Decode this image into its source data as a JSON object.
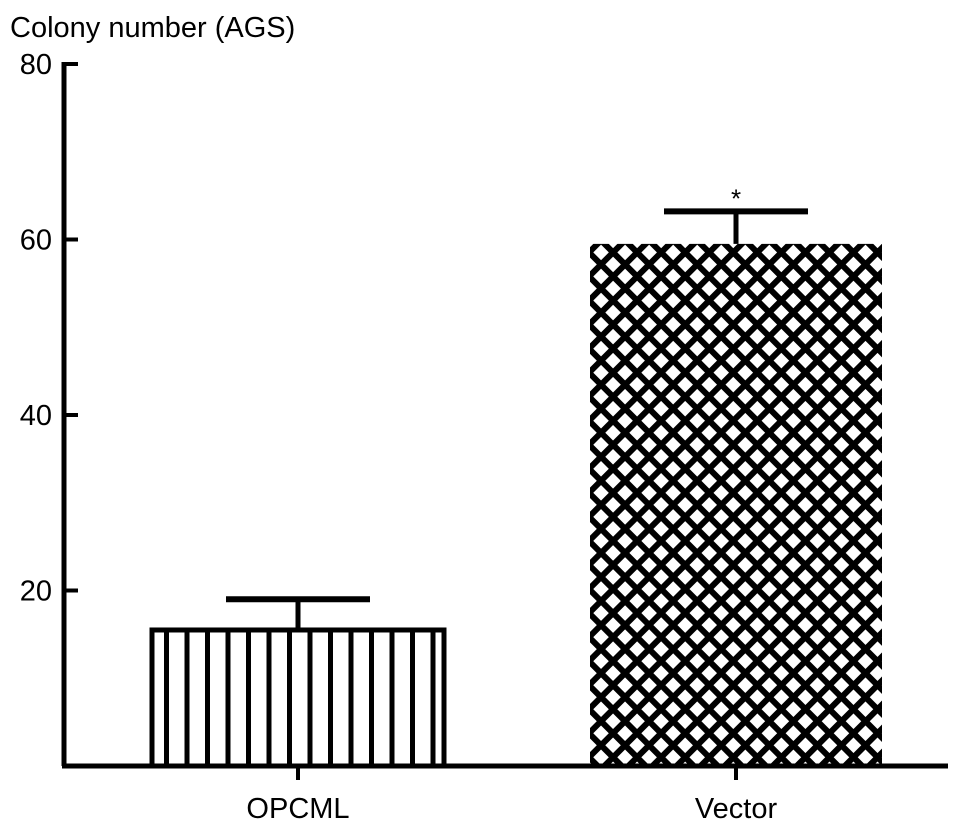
{
  "chart_data": {
    "type": "bar",
    "title": "",
    "xlabel": "",
    "ylabel": "Colony number (AGS)",
    "ylim": [
      0,
      80
    ],
    "yticks": [
      20,
      40,
      60,
      80
    ],
    "grid": false,
    "categories": [
      "OPCML",
      "Vector"
    ],
    "values": [
      15.5,
      59.5
    ],
    "errors": [
      3.5,
      3.7
    ],
    "patterns": [
      "vertical-stripes",
      "crosshatch"
    ],
    "annotations": [
      {
        "category": "Vector",
        "text": "*"
      }
    ]
  },
  "colors": {
    "ink": "#000000",
    "background": "#ffffff"
  }
}
